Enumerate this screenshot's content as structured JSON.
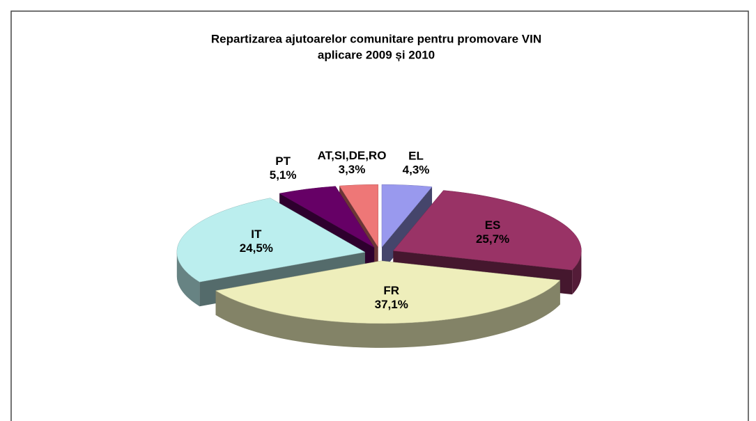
{
  "chart_data": {
    "type": "pie",
    "title": "Repartizarea ajutoarelor comunitare pentru promovare VIN",
    "subtitle": "aplicare 2009 și 2010",
    "categories": [
      "EL",
      "ES",
      "FR",
      "IT",
      "PT",
      "AT,SI,DE,RO"
    ],
    "values": [
      4.3,
      25.7,
      37.1,
      24.5,
      5.1,
      3.3
    ],
    "value_labels": [
      "4,3%",
      "25,7%",
      "37,1%",
      "24,5%",
      "5,1%",
      "3,3%"
    ],
    "colors": [
      "#9999ee",
      "#993366",
      "#eeeebb",
      "#bbeeee",
      "#660066",
      "#ee7777"
    ]
  }
}
